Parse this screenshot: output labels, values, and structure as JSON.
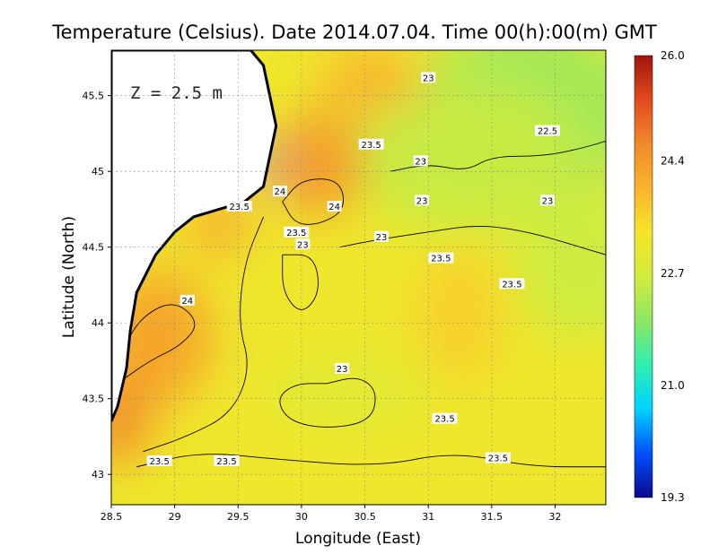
{
  "chart_data": {
    "type": "heatmap",
    "title": "Temperature (Celsius). Date 2014.07.04. Time 00(h):00(m)  GMT",
    "xlabel": "Longitude (East)",
    "ylabel": "Latitude (North)",
    "depth_label": "Z = 2.5 m",
    "xlim": [
      28.5,
      32.4
    ],
    "ylim": [
      42.8,
      45.8
    ],
    "xticks": [
      {
        "v": 28.5,
        "label": "28.5"
      },
      {
        "v": 29,
        "label": "29"
      },
      {
        "v": 29.5,
        "label": "29.5"
      },
      {
        "v": 30,
        "label": "30"
      },
      {
        "v": 30.5,
        "label": "30.5"
      },
      {
        "v": 31,
        "label": "31"
      },
      {
        "v": 31.5,
        "label": "31.5"
      },
      {
        "v": 32,
        "label": "32"
      }
    ],
    "yticks": [
      {
        "v": 43,
        "label": "43"
      },
      {
        "v": 43.5,
        "label": "43.5"
      },
      {
        "v": 44,
        "label": "44"
      },
      {
        "v": 44.5,
        "label": "44.5"
      },
      {
        "v": 45,
        "label": "45"
      },
      {
        "v": 45.5,
        "label": "45.5"
      }
    ],
    "grid": true,
    "colorbar": {
      "min": 19.3,
      "max": 26.0,
      "ticks": [
        {
          "v": 26.0,
          "label": "26.0"
        },
        {
          "v": 24.4,
          "label": "24.4"
        },
        {
          "v": 22.7,
          "label": "22.7"
        },
        {
          "v": 21.0,
          "label": "21.0"
        },
        {
          "v": 19.3,
          "label": "19.3"
        }
      ],
      "colors": [
        "#0a0a8c",
        "#0050ff",
        "#00d2ff",
        "#2ef0b0",
        "#8ee664",
        "#d2ec3c",
        "#f5e629",
        "#f9b32d",
        "#f08a2a",
        "#e24b1e",
        "#a0140a"
      ]
    },
    "field_blobs": [
      {
        "lon": 31.8,
        "lat": 45.4,
        "rx": 0.9,
        "ry": 0.6,
        "t": 22.2
      },
      {
        "lon": 31.3,
        "lat": 45.1,
        "rx": 0.9,
        "ry": 0.5,
        "t": 22.55
      },
      {
        "lon": 32.2,
        "lat": 44.4,
        "rx": 0.5,
        "ry": 0.5,
        "t": 22.6
      },
      {
        "lon": 30.15,
        "lat": 45.05,
        "rx": 0.35,
        "ry": 0.35,
        "t": 24.35
      },
      {
        "lon": 29.35,
        "lat": 44.65,
        "rx": 0.25,
        "ry": 0.2,
        "t": 24.1
      },
      {
        "lon": 28.85,
        "lat": 43.9,
        "rx": 0.45,
        "ry": 0.45,
        "t": 24.2
      },
      {
        "lon": 28.55,
        "lat": 43.35,
        "rx": 0.25,
        "ry": 0.3,
        "t": 24.6
      },
      {
        "lon": 30.55,
        "lat": 45.6,
        "rx": 0.4,
        "ry": 0.2,
        "t": 24.0
      },
      {
        "lon": 29.72,
        "lat": 45.05,
        "rx": 0.07,
        "ry": 0.12,
        "t": 19.8
      },
      {
        "lon": 30.4,
        "lat": 43.55,
        "rx": 0.7,
        "ry": 0.3,
        "t": 23.0
      },
      {
        "lon": 31.25,
        "lat": 44.05,
        "rx": 0.35,
        "ry": 0.45,
        "t": 23.6
      }
    ],
    "contours": [
      {
        "level": 23,
        "path": [
          [
            30.3,
            44.5
          ],
          [
            30.6,
            44.55
          ],
          [
            31.0,
            44.6
          ],
          [
            31.4,
            44.65
          ],
          [
            31.8,
            44.6
          ],
          [
            32.2,
            44.5
          ],
          [
            32.4,
            44.45
          ]
        ]
      },
      {
        "level": 23,
        "path": [
          [
            30.2,
            43.6
          ],
          [
            30.45,
            43.65
          ],
          [
            30.6,
            43.55
          ],
          [
            30.55,
            43.35
          ],
          [
            30.2,
            43.3
          ],
          [
            29.9,
            43.35
          ],
          [
            29.8,
            43.5
          ],
          [
            29.95,
            43.6
          ],
          [
            30.2,
            43.6
          ]
        ]
      },
      {
        "level": 23,
        "path": [
          [
            29.85,
            44.45
          ],
          [
            30.1,
            44.45
          ],
          [
            30.15,
            44.2
          ],
          [
            30.0,
            44.05
          ],
          [
            29.85,
            44.2
          ],
          [
            29.85,
            44.45
          ]
        ]
      },
      {
        "level": 23.5,
        "path": [
          [
            28.7,
            43.05
          ],
          [
            29.2,
            43.15
          ],
          [
            29.8,
            43.1
          ],
          [
            30.6,
            43.05
          ],
          [
            31.2,
            43.15
          ],
          [
            31.8,
            43.05
          ],
          [
            32.4,
            43.05
          ]
        ]
      },
      {
        "level": 23.5,
        "path": [
          [
            29.7,
            44.7
          ],
          [
            29.55,
            44.4
          ],
          [
            29.5,
            44.0
          ],
          [
            29.6,
            43.7
          ],
          [
            29.45,
            43.4
          ],
          [
            29.1,
            43.25
          ],
          [
            28.75,
            43.15
          ]
        ]
      },
      {
        "level": 23.5,
        "path": [
          [
            30.7,
            45.0
          ],
          [
            31.0,
            45.05
          ],
          [
            31.3,
            45.0
          ],
          [
            31.5,
            45.1
          ],
          [
            31.9,
            45.1
          ],
          [
            32.2,
            45.15
          ],
          [
            32.4,
            45.2
          ]
        ]
      },
      {
        "level": 24,
        "path": [
          [
            28.55,
            43.6
          ],
          [
            28.8,
            43.75
          ],
          [
            29.05,
            43.85
          ],
          [
            29.2,
            44.0
          ],
          [
            29.0,
            44.15
          ],
          [
            28.75,
            44.05
          ],
          [
            28.6,
            43.85
          ]
        ]
      },
      {
        "level": 24,
        "path": [
          [
            29.85,
            44.8
          ],
          [
            30.0,
            44.95
          ],
          [
            30.3,
            44.95
          ],
          [
            30.35,
            44.75
          ],
          [
            30.15,
            44.65
          ],
          [
            29.95,
            44.65
          ],
          [
            29.85,
            44.8
          ]
        ]
      }
    ],
    "contour_labels": [
      {
        "label": "23",
        "lon": 31.0,
        "lat": 45.62
      },
      {
        "label": "22.5",
        "lon": 31.94,
        "lat": 45.27
      },
      {
        "label": "23.5",
        "lon": 30.55,
        "lat": 45.18
      },
      {
        "label": "23",
        "lon": 30.94,
        "lat": 45.07
      },
      {
        "label": "24",
        "lon": 29.83,
        "lat": 44.87
      },
      {
        "label": "24",
        "lon": 30.26,
        "lat": 44.77
      },
      {
        "label": "23.5",
        "lon": 29.51,
        "lat": 44.77
      },
      {
        "label": "23",
        "lon": 30.95,
        "lat": 44.81
      },
      {
        "label": "23",
        "lon": 31.94,
        "lat": 44.81
      },
      {
        "label": "23.5",
        "lon": 29.96,
        "lat": 44.6
      },
      {
        "label": "23",
        "lon": 30.63,
        "lat": 44.57
      },
      {
        "label": "23",
        "lon": 30.01,
        "lat": 44.52
      },
      {
        "label": "23.5",
        "lon": 31.1,
        "lat": 44.43
      },
      {
        "label": "23.5",
        "lon": 31.66,
        "lat": 44.26
      },
      {
        "label": "24",
        "lon": 29.1,
        "lat": 44.15
      },
      {
        "label": "23",
        "lon": 30.32,
        "lat": 43.7
      },
      {
        "label": "23.5",
        "lon": 31.13,
        "lat": 43.37
      },
      {
        "label": "23.5",
        "lon": 28.88,
        "lat": 43.09
      },
      {
        "label": "23.5",
        "lon": 29.41,
        "lat": 43.09
      },
      {
        "label": "23.5",
        "lon": 31.55,
        "lat": 43.11
      }
    ],
    "land": [
      [
        28.5,
        45.8
      ],
      [
        29.6,
        45.8
      ],
      [
        29.7,
        45.7
      ],
      [
        29.75,
        45.5
      ],
      [
        29.8,
        45.3
      ],
      [
        29.75,
        45.1
      ],
      [
        29.7,
        44.9
      ],
      [
        29.55,
        44.8
      ],
      [
        29.35,
        44.75
      ],
      [
        29.15,
        44.7
      ],
      [
        29.0,
        44.6
      ],
      [
        28.85,
        44.45
      ],
      [
        28.7,
        44.2
      ],
      [
        28.65,
        43.95
      ],
      [
        28.62,
        43.7
      ],
      [
        28.55,
        43.45
      ],
      [
        28.5,
        43.35
      ]
    ]
  }
}
